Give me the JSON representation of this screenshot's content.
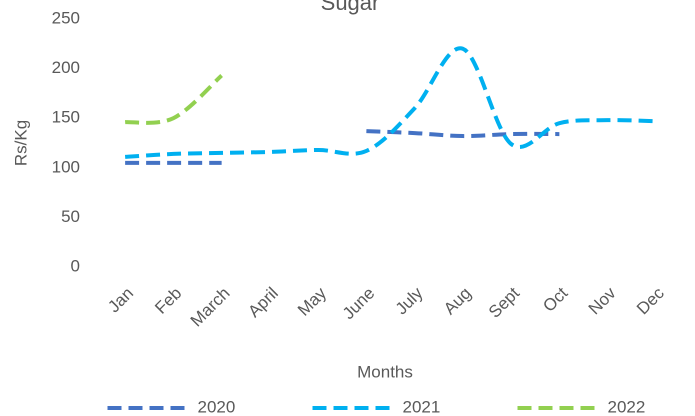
{
  "chart_data": {
    "type": "line",
    "title": "Sugar",
    "x_label": "Months",
    "y_label": "Rs/Kg",
    "categories": [
      "Jan",
      "Feb",
      "March",
      "April",
      "May",
      "June",
      "July",
      "Aug",
      "Sept",
      "Oct",
      "Nov",
      "Dec"
    ],
    "series": [
      {
        "name": "2020",
        "color": "#4472c4",
        "values": [
          105,
          105,
          105,
          null,
          null,
          137,
          135,
          132,
          134,
          134,
          null,
          null
        ]
      },
      {
        "name": "2021",
        "color": "#00b0f0",
        "values": [
          111,
          114,
          115,
          116,
          118,
          117,
          160,
          220,
          124,
          145,
          148,
          147
        ]
      },
      {
        "name": "2022",
        "color": "#92d050",
        "values": [
          146,
          150,
          193,
          null,
          null,
          null,
          null,
          null,
          null,
          null,
          null,
          null
        ]
      }
    ],
    "ylim": [
      0,
      250
    ],
    "yticks": [
      0,
      50,
      100,
      150,
      200,
      250
    ],
    "grid": false,
    "smooth": true,
    "legend": "bottom"
  }
}
